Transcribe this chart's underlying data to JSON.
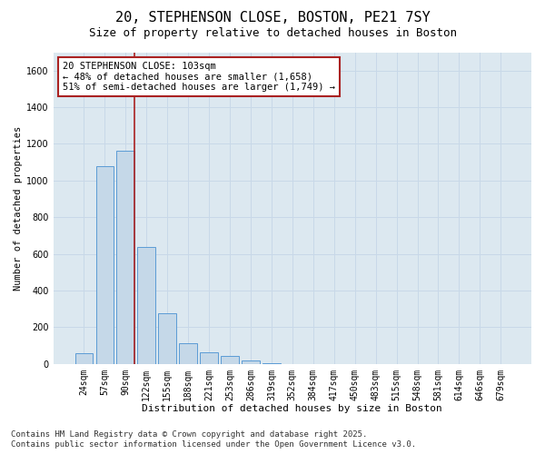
{
  "title_line1": "20, STEPHENSON CLOSE, BOSTON, PE21 7SY",
  "title_line2": "Size of property relative to detached houses in Boston",
  "xlabel": "Distribution of detached houses by size in Boston",
  "ylabel": "Number of detached properties",
  "categories": [
    "24sqm",
    "57sqm",
    "90sqm",
    "122sqm",
    "155sqm",
    "188sqm",
    "221sqm",
    "253sqm",
    "286sqm",
    "319sqm",
    "352sqm",
    "384sqm",
    "417sqm",
    "450sqm",
    "483sqm",
    "515sqm",
    "548sqm",
    "581sqm",
    "614sqm",
    "646sqm",
    "679sqm"
  ],
  "values": [
    60,
    1080,
    1165,
    640,
    275,
    115,
    65,
    45,
    20,
    5,
    0,
    0,
    0,
    0,
    0,
    0,
    0,
    0,
    0,
    0,
    0
  ],
  "bar_color": "#c5d8e8",
  "bar_edge_color": "#5b9bd5",
  "vline_color": "#aa2222",
  "annotation_text": "20 STEPHENSON CLOSE: 103sqm\n← 48% of detached houses are smaller (1,658)\n51% of semi-detached houses are larger (1,749) →",
  "annotation_box_edge_color": "#aa2222",
  "ylim_max": 1700,
  "yticks": [
    0,
    200,
    400,
    600,
    800,
    1000,
    1200,
    1400,
    1600
  ],
  "grid_color": "#c8d8e8",
  "axes_bg_color": "#dce8f0",
  "fig_bg_color": "#ffffff",
  "footnote": "Contains HM Land Registry data © Crown copyright and database right 2025.\nContains public sector information licensed under the Open Government Licence v3.0.",
  "title_fontsize": 11,
  "subtitle_fontsize": 9,
  "annotation_fontsize": 7.5,
  "tick_fontsize": 7,
  "xlabel_fontsize": 8,
  "ylabel_fontsize": 7.5,
  "footnote_fontsize": 6.5
}
